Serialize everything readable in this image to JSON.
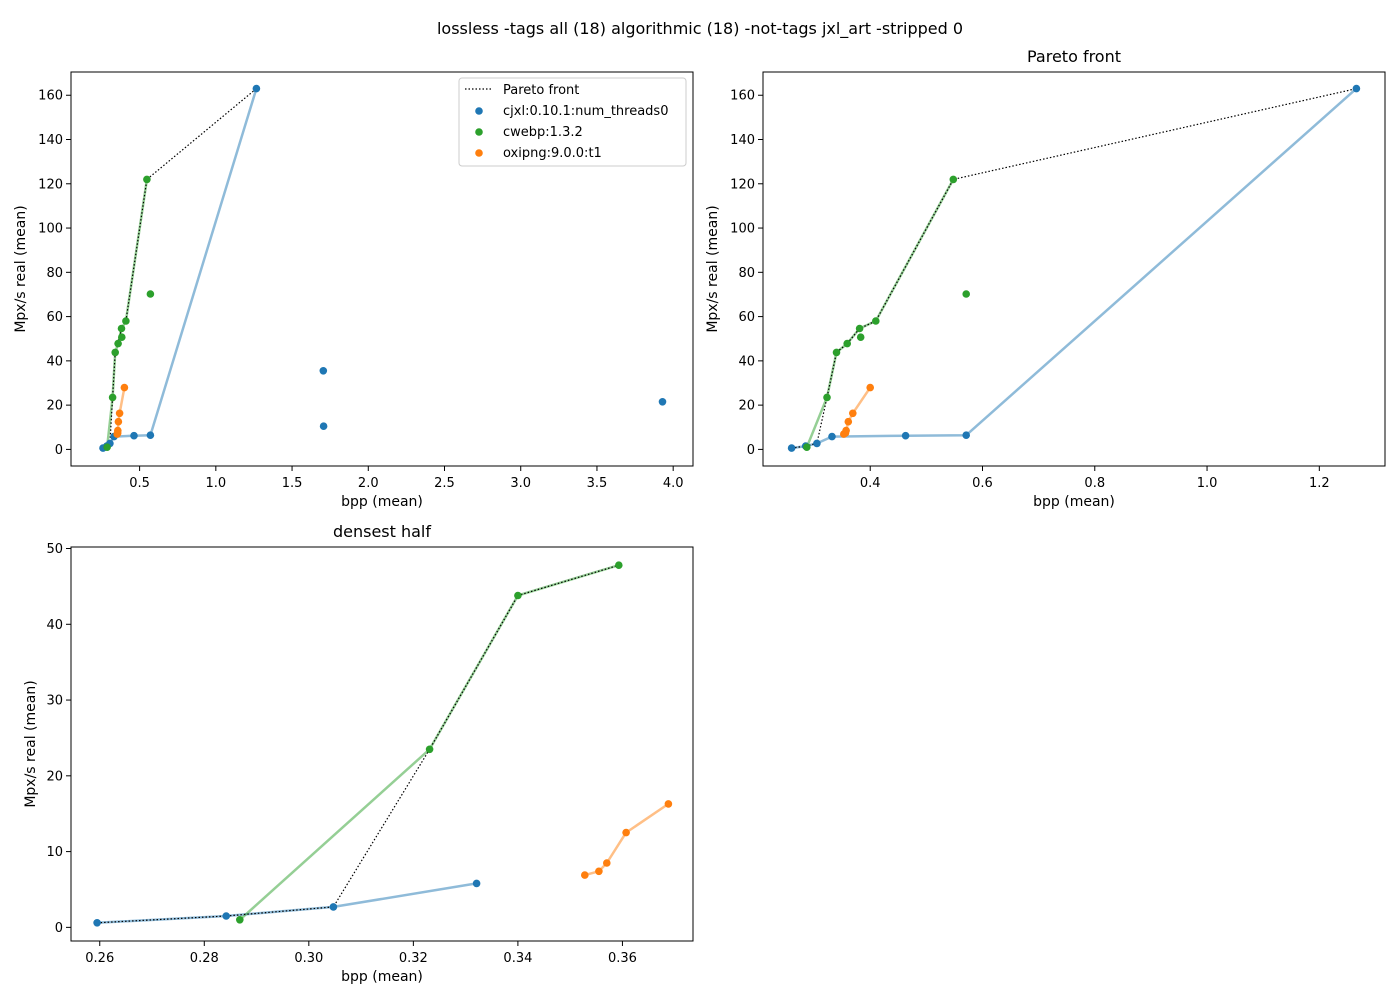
{
  "figure_title": "lossless -tags all (18) algorithmic (18) -not-tags jxl_art -stripped 0",
  "colors": {
    "cjxl": "#1f77b4",
    "cwebp": "#2ca02c",
    "oxipng": "#ff7f0e",
    "pareto": "#000000"
  },
  "legend": {
    "placement": "upper-right",
    "entries": [
      "Pareto front",
      "cjxl:0.10.1:num_threads0",
      "cwebp:1.3.2",
      "oxipng:9.0.0:t1"
    ]
  },
  "chart_data": [
    {
      "type": "scatter",
      "title": "",
      "xlabel": "bpp (mean)",
      "ylabel": "Mpx/s real (mean)",
      "xlim": [
        0.05,
        4.13
      ],
      "ylim": [
        -7.5,
        170.5
      ],
      "xticks": [
        0.5,
        1.0,
        1.5,
        2.0,
        2.5,
        3.0,
        3.5,
        4.0
      ],
      "xtick_labels": [
        "0.5",
        "1.0",
        "1.5",
        "2.0",
        "2.5",
        "3.0",
        "3.5",
        "4.0"
      ],
      "yticks": [
        0,
        20,
        40,
        60,
        80,
        100,
        120,
        140,
        160
      ],
      "ytick_labels": [
        "0",
        "20",
        "40",
        "60",
        "80",
        "100",
        "120",
        "140",
        "160"
      ],
      "legend": true,
      "series": [
        {
          "name": "cjxl:0.10.1:num_threads0",
          "color": "#1f77b4",
          "line": [
            [
              0.26,
              0.6
            ],
            [
              0.285,
              1.5
            ],
            [
              0.305,
              2.7
            ],
            [
              0.332,
              5.8
            ],
            [
              0.463,
              6.2
            ],
            [
              0.571,
              6.4
            ],
            [
              1.266,
              163.0
            ]
          ],
          "extra": [
            [
              1.705,
              35.5
            ],
            [
              1.707,
              10.5
            ],
            [
              3.93,
              21.5
            ]
          ]
        },
        {
          "name": "cwebp:1.3.2",
          "color": "#2ca02c",
          "line": [
            [
              0.287,
              1.0
            ],
            [
              0.323,
              23.5
            ],
            [
              0.34,
              43.8
            ],
            [
              0.359,
              47.8
            ],
            [
              0.381,
              54.6
            ],
            [
              0.41,
              58.0
            ],
            [
              0.548,
              122.0
            ]
          ],
          "extra": [
            [
              0.383,
              50.7
            ],
            [
              0.571,
              70.2
            ]
          ]
        },
        {
          "name": "oxipng:9.0.0:t1",
          "color": "#ff7f0e",
          "line": [
            [
              0.353,
              6.9
            ],
            [
              0.356,
              7.4
            ],
            [
              0.357,
              8.5
            ],
            [
              0.361,
              12.5
            ],
            [
              0.369,
              16.3
            ],
            [
              0.4,
              27.9
            ]
          ],
          "extra": []
        }
      ],
      "pareto": [
        [
          0.26,
          0.6
        ],
        [
          0.285,
          1.5
        ],
        [
          0.305,
          2.7
        ],
        [
          0.323,
          23.5
        ],
        [
          0.34,
          43.8
        ],
        [
          0.359,
          47.8
        ],
        [
          0.381,
          54.6
        ],
        [
          0.41,
          58.0
        ],
        [
          0.548,
          122.0
        ],
        [
          1.266,
          163.0
        ]
      ]
    },
    {
      "type": "scatter",
      "title": "Pareto front",
      "xlabel": "bpp (mean)",
      "ylabel": "Mpx/s real (mean)",
      "xlim": [
        0.209,
        1.317
      ],
      "ylim": [
        -7.5,
        170.5
      ],
      "xticks": [
        0.4,
        0.6,
        0.8,
        1.0,
        1.2
      ],
      "xtick_labels": [
        "0.4",
        "0.6",
        "0.8",
        "1.0",
        "1.2"
      ],
      "yticks": [
        0,
        20,
        40,
        60,
        80,
        100,
        120,
        140,
        160
      ],
      "ytick_labels": [
        "0",
        "20",
        "40",
        "60",
        "80",
        "100",
        "120",
        "140",
        "160"
      ],
      "legend": false,
      "series": [
        {
          "name": "cjxl:0.10.1:num_threads0",
          "color": "#1f77b4",
          "line": [
            [
              0.26,
              0.6
            ],
            [
              0.285,
              1.5
            ],
            [
              0.305,
              2.7
            ],
            [
              0.332,
              5.8
            ],
            [
              0.463,
              6.2
            ],
            [
              0.571,
              6.4
            ],
            [
              1.266,
              163.0
            ]
          ],
          "extra": []
        },
        {
          "name": "cwebp:1.3.2",
          "color": "#2ca02c",
          "line": [
            [
              0.287,
              1.0
            ],
            [
              0.323,
              23.5
            ],
            [
              0.34,
              43.8
            ],
            [
              0.359,
              47.8
            ],
            [
              0.381,
              54.6
            ],
            [
              0.41,
              58.0
            ],
            [
              0.548,
              122.0
            ]
          ],
          "extra": [
            [
              0.383,
              50.7
            ],
            [
              0.571,
              70.2
            ]
          ]
        },
        {
          "name": "oxipng:9.0.0:t1",
          "color": "#ff7f0e",
          "line": [
            [
              0.353,
              6.9
            ],
            [
              0.356,
              7.4
            ],
            [
              0.357,
              8.5
            ],
            [
              0.361,
              12.5
            ],
            [
              0.369,
              16.3
            ],
            [
              0.4,
              27.9
            ]
          ],
          "extra": []
        }
      ],
      "pareto": [
        [
          0.26,
          0.6
        ],
        [
          0.285,
          1.5
        ],
        [
          0.305,
          2.7
        ],
        [
          0.323,
          23.5
        ],
        [
          0.34,
          43.8
        ],
        [
          0.359,
          47.8
        ],
        [
          0.381,
          54.6
        ],
        [
          0.41,
          58.0
        ],
        [
          0.548,
          122.0
        ],
        [
          1.266,
          163.0
        ]
      ]
    },
    {
      "type": "scatter",
      "title": "densest half",
      "xlabel": "bpp (mean)",
      "ylabel": "Mpx/s real (mean)",
      "xlim": [
        0.2545,
        0.3735
      ],
      "ylim": [
        -1.8,
        50.2
      ],
      "xticks": [
        0.26,
        0.28,
        0.3,
        0.32,
        0.34,
        0.36
      ],
      "xtick_labels": [
        "0.26",
        "0.28",
        "0.30",
        "0.32",
        "0.34",
        "0.36"
      ],
      "yticks": [
        0,
        10,
        20,
        30,
        40,
        50
      ],
      "ytick_labels": [
        "0",
        "10",
        "20",
        "30",
        "40",
        "50"
      ],
      "legend": false,
      "series": [
        {
          "name": "cjxl:0.10.1:num_threads0",
          "color": "#1f77b4",
          "line": [
            [
              0.2595,
              0.6
            ],
            [
              0.2842,
              1.5
            ],
            [
              0.3047,
              2.7
            ],
            [
              0.3321,
              5.8
            ]
          ],
          "extra": []
        },
        {
          "name": "cwebp:1.3.2",
          "color": "#2ca02c",
          "line": [
            [
              0.2868,
              1.0
            ],
            [
              0.3231,
              23.5
            ],
            [
              0.34,
              43.8
            ],
            [
              0.3593,
              47.8
            ]
          ],
          "extra": []
        },
        {
          "name": "oxipng:9.0.0:t1",
          "color": "#ff7f0e",
          "line": [
            [
              0.3528,
              6.9
            ],
            [
              0.3555,
              7.4
            ],
            [
              0.357,
              8.5
            ],
            [
              0.3607,
              12.5
            ],
            [
              0.3688,
              16.3
            ]
          ],
          "extra": []
        }
      ],
      "pareto": [
        [
          0.2595,
          0.6
        ],
        [
          0.2842,
          1.5
        ],
        [
          0.3047,
          2.7
        ],
        [
          0.3231,
          23.5
        ],
        [
          0.34,
          43.8
        ],
        [
          0.3593,
          47.8
        ]
      ]
    }
  ]
}
